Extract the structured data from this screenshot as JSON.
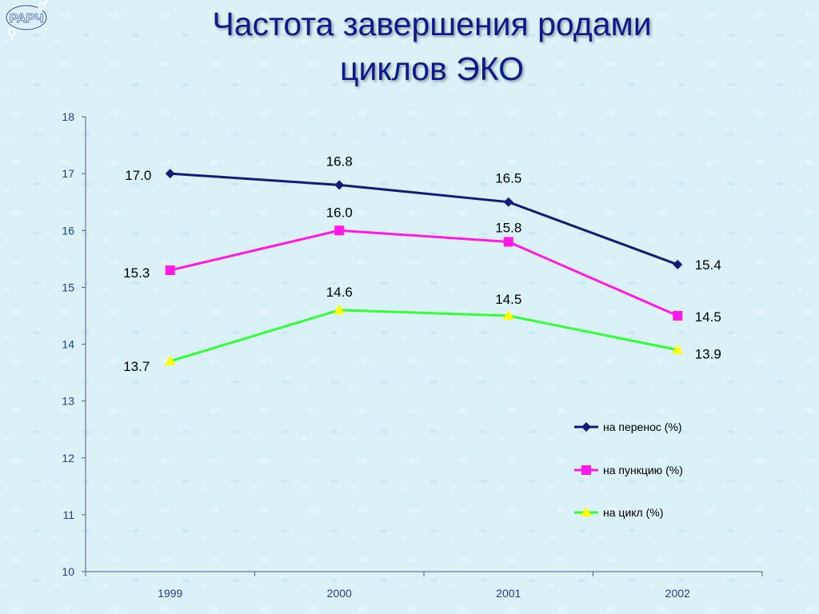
{
  "title_line1": "Частота завершения родами",
  "title_line2": "циклов ЭКО",
  "logo_text": "РАРЧ",
  "chart_data": {
    "type": "line",
    "categories": [
      "1999",
      "2000",
      "2001",
      "2002"
    ],
    "ylim": [
      10,
      18
    ],
    "yticks": [
      10,
      11,
      12,
      13,
      14,
      15,
      16,
      17,
      18
    ],
    "grid": false,
    "legend_position": "right",
    "series": [
      {
        "name": "на перенос (%)",
        "values": [
          17.0,
          16.8,
          16.5,
          15.4
        ],
        "labels": [
          "17.0",
          "16.8",
          "16.5",
          "15.4"
        ],
        "color": "#141a78",
        "marker": "diamond"
      },
      {
        "name": "на пункцию (%)",
        "values": [
          15.3,
          16.0,
          15.8,
          14.5
        ],
        "labels": [
          "15.3",
          "16.0",
          "15.8",
          "14.5"
        ],
        "color": "#ff19e6",
        "marker": "square"
      },
      {
        "name": "на цикл (%)",
        "values": [
          13.7,
          14.6,
          14.5,
          13.9
        ],
        "labels": [
          "13.7",
          "14.6",
          "14.5",
          "13.9"
        ],
        "color": "#33ff33",
        "marker": "triangle"
      }
    ]
  },
  "colors": {
    "title": "#0d1a8c",
    "axis": "#5a5a8a",
    "tick_text": "#1b3f8f",
    "marker_fill_triangle": "#ffff00"
  }
}
